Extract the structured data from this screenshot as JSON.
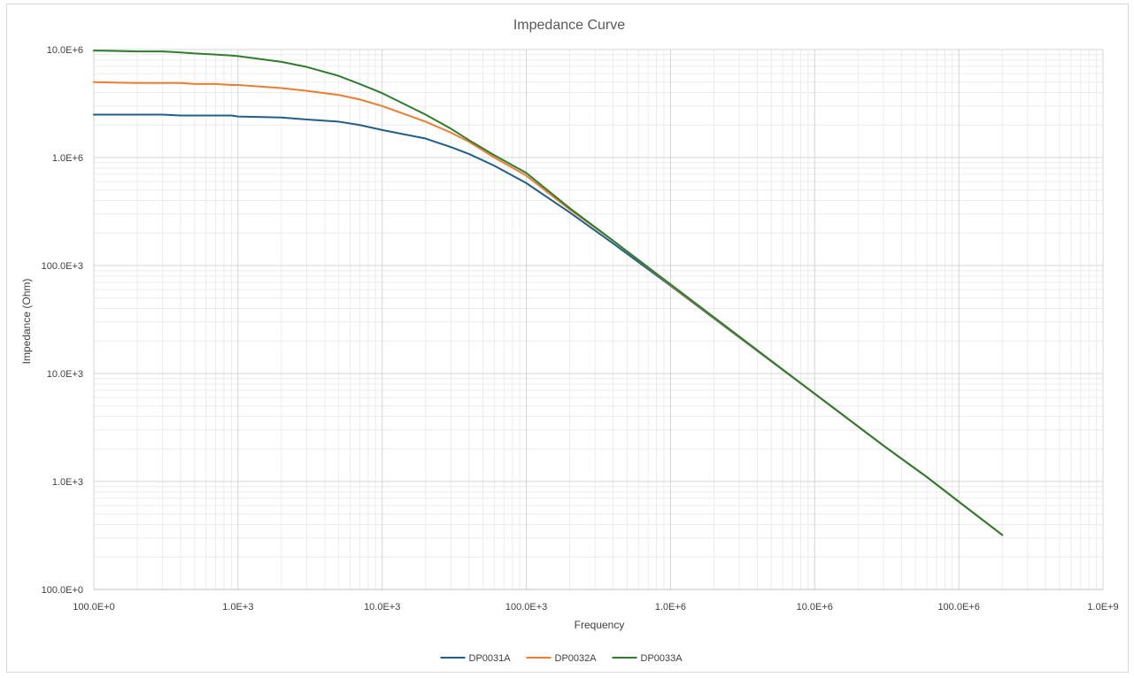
{
  "chart_data": {
    "type": "line",
    "title": "Impedance Curve",
    "xlabel": "Frequency",
    "ylabel": "Impedance (Ohm)",
    "x_scale": "log",
    "y_scale": "log",
    "xlim": [
      100,
      1000000000
    ],
    "ylim": [
      100,
      10000000
    ],
    "x_tick_values": [
      100,
      1000,
      10000,
      100000,
      1000000,
      10000000,
      100000000,
      1000000000
    ],
    "x_tick_labels": [
      "100.0E+0",
      "1.0E+3",
      "10.0E+3",
      "100.0E+3",
      "1.0E+6",
      "10.0E+6",
      "100.0E+6",
      "1.0E+9"
    ],
    "y_tick_values": [
      100,
      1000,
      10000,
      100000,
      1000000,
      10000000
    ],
    "y_tick_labels": [
      "100.0E+0",
      "1.0E+3",
      "10.0E+3",
      "100.0E+3",
      "1.0E+6",
      "10.0E+6"
    ],
    "grid": true,
    "minor_grid": true,
    "legend_position": "bottom",
    "series": [
      {
        "name": "DP0031A",
        "color": "#1f5f8b",
        "x": [
          100,
          200,
          300,
          400,
          500,
          700,
          900,
          1000,
          2000,
          3000,
          5000,
          7000,
          10000,
          20000,
          30000,
          40000,
          60000,
          100000,
          200000,
          400000,
          1000000,
          3000000,
          10000000,
          30000000,
          60000000,
          100000000,
          200000000
        ],
        "y": [
          2500000,
          2500000,
          2500000,
          2450000,
          2450000,
          2450000,
          2450000,
          2400000,
          2350000,
          2250000,
          2150000,
          2000000,
          1800000,
          1500000,
          1250000,
          1080000,
          840000,
          580000,
          310000,
          160000,
          65000,
          21600,
          6500,
          2150,
          1100,
          650,
          320
        ]
      },
      {
        "name": "DP0032A",
        "color": "#ed7d31",
        "x": [
          100,
          200,
          300,
          400,
          500,
          700,
          900,
          1000,
          2000,
          3000,
          5000,
          7000,
          10000,
          20000,
          30000,
          40000,
          60000,
          100000,
          200000,
          400000,
          1000000,
          3000000,
          10000000,
          30000000,
          60000000,
          100000000,
          200000000
        ],
        "y": [
          5000000,
          4900000,
          4900000,
          4900000,
          4800000,
          4800000,
          4700000,
          4700000,
          4400000,
          4150000,
          3800000,
          3450000,
          3000000,
          2150000,
          1700000,
          1400000,
          1000000,
          680000,
          330000,
          170000,
          66000,
          21800,
          6500,
          2150,
          1100,
          650,
          320
        ]
      },
      {
        "name": "DP0033A",
        "color": "#2e7d2e",
        "x": [
          100,
          200,
          300,
          400,
          500,
          700,
          900,
          1000,
          2000,
          3000,
          5000,
          7000,
          10000,
          20000,
          30000,
          40000,
          60000,
          100000,
          200000,
          400000,
          1000000,
          3000000,
          10000000,
          30000000,
          60000000,
          100000000,
          200000000
        ],
        "y": [
          9800000,
          9600000,
          9600000,
          9400000,
          9200000,
          9000000,
          8800000,
          8700000,
          7700000,
          6900000,
          5700000,
          4800000,
          3950000,
          2500000,
          1850000,
          1450000,
          1050000,
          720000,
          340000,
          170000,
          67000,
          22000,
          6500,
          2150,
          1100,
          650,
          320
        ]
      }
    ]
  }
}
